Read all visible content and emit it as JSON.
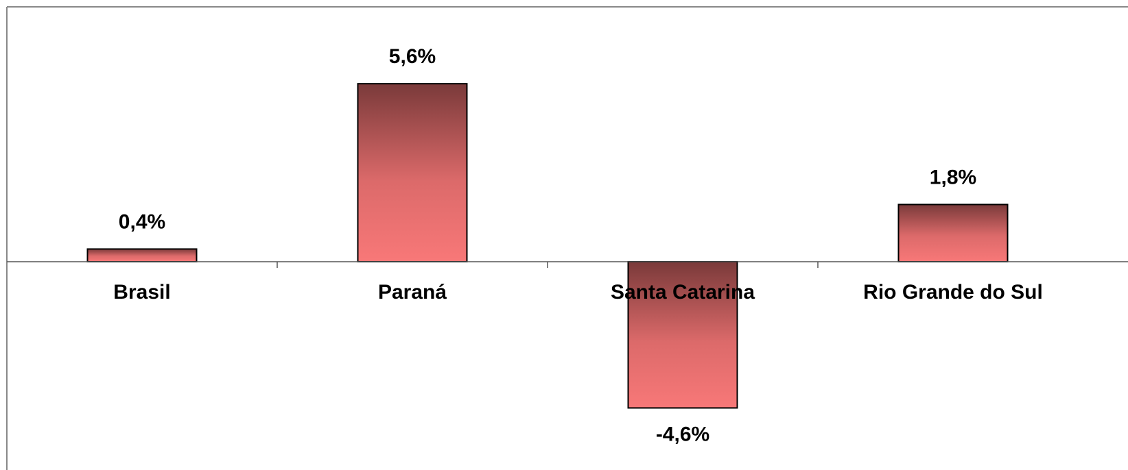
{
  "chart_data": {
    "type": "bar",
    "categories": [
      "Brasil",
      "Paraná",
      "Santa Catarina",
      "Rio Grande do Sul"
    ],
    "values": [
      0.4,
      5.6,
      -4.6,
      1.8
    ],
    "value_labels": [
      "0,4%",
      "5,6%",
      "-4,6%",
      "1,8%"
    ],
    "color": "#f87878"
  }
}
